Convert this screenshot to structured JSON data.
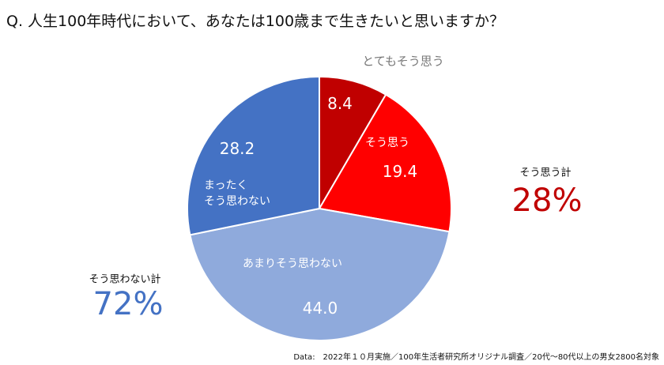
{
  "title": "Q.  人生100年時代において、あなたは100歳まで生きたいと思いますか？",
  "chart_data": {
    "type": "pie",
    "start": "top",
    "direction": "clockwise",
    "slices": [
      {
        "name": "とてもそう思う",
        "value": 8.4,
        "label": "8.4",
        "color": "#c00000"
      },
      {
        "name": "そう思う",
        "value": 19.4,
        "label": "19.4",
        "color": "#ff0000"
      },
      {
        "name": "あまりそう思わない",
        "value": 44.0,
        "label": "44.0",
        "color": "#8faadc"
      },
      {
        "name": "まったく\nそう思わない",
        "value": 28.2,
        "label": "28.2",
        "color": "#4472c4"
      }
    ],
    "totals": [
      {
        "label": "そう思う計",
        "value": "28%",
        "color": "#c00000"
      },
      {
        "label": "そう思わない計",
        "value": "72%",
        "color": "#4472c4"
      }
    ]
  },
  "note": "Data:　2022年１０月実施／100年生活者研究所オリジナル調査／20代～80代以上の男女2800名対象"
}
